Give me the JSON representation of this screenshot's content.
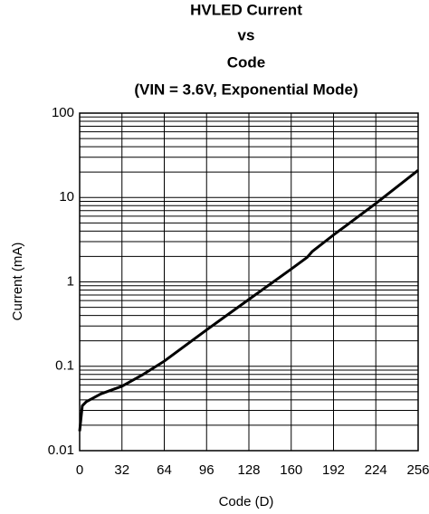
{
  "chart_data": {
    "type": "line",
    "title": [
      "HVLED Current",
      "vs",
      "Code",
      "(VIN = 3.6V, Exponential Mode)"
    ],
    "x_label": "Code (D)",
    "y_label": "Current (mA)",
    "x": [
      0,
      2,
      5,
      16,
      32,
      48,
      64,
      96,
      128,
      160,
      172,
      176,
      192,
      224,
      256
    ],
    "values": [
      0.017,
      0.034,
      0.038,
      0.047,
      0.058,
      0.08,
      0.115,
      0.27,
      0.62,
      1.42,
      1.95,
      2.3,
      3.6,
      8.5,
      21
    ],
    "color": "#000000",
    "xlim": [
      0,
      256
    ],
    "xticks": [
      0,
      32,
      64,
      96,
      128,
      160,
      192,
      224,
      256
    ],
    "ylim": [
      0.01,
      100
    ],
    "yticks": [
      0.01,
      0.1,
      1,
      10,
      100
    ],
    "log_y": true,
    "grid": true,
    "minor_grid": true
  }
}
